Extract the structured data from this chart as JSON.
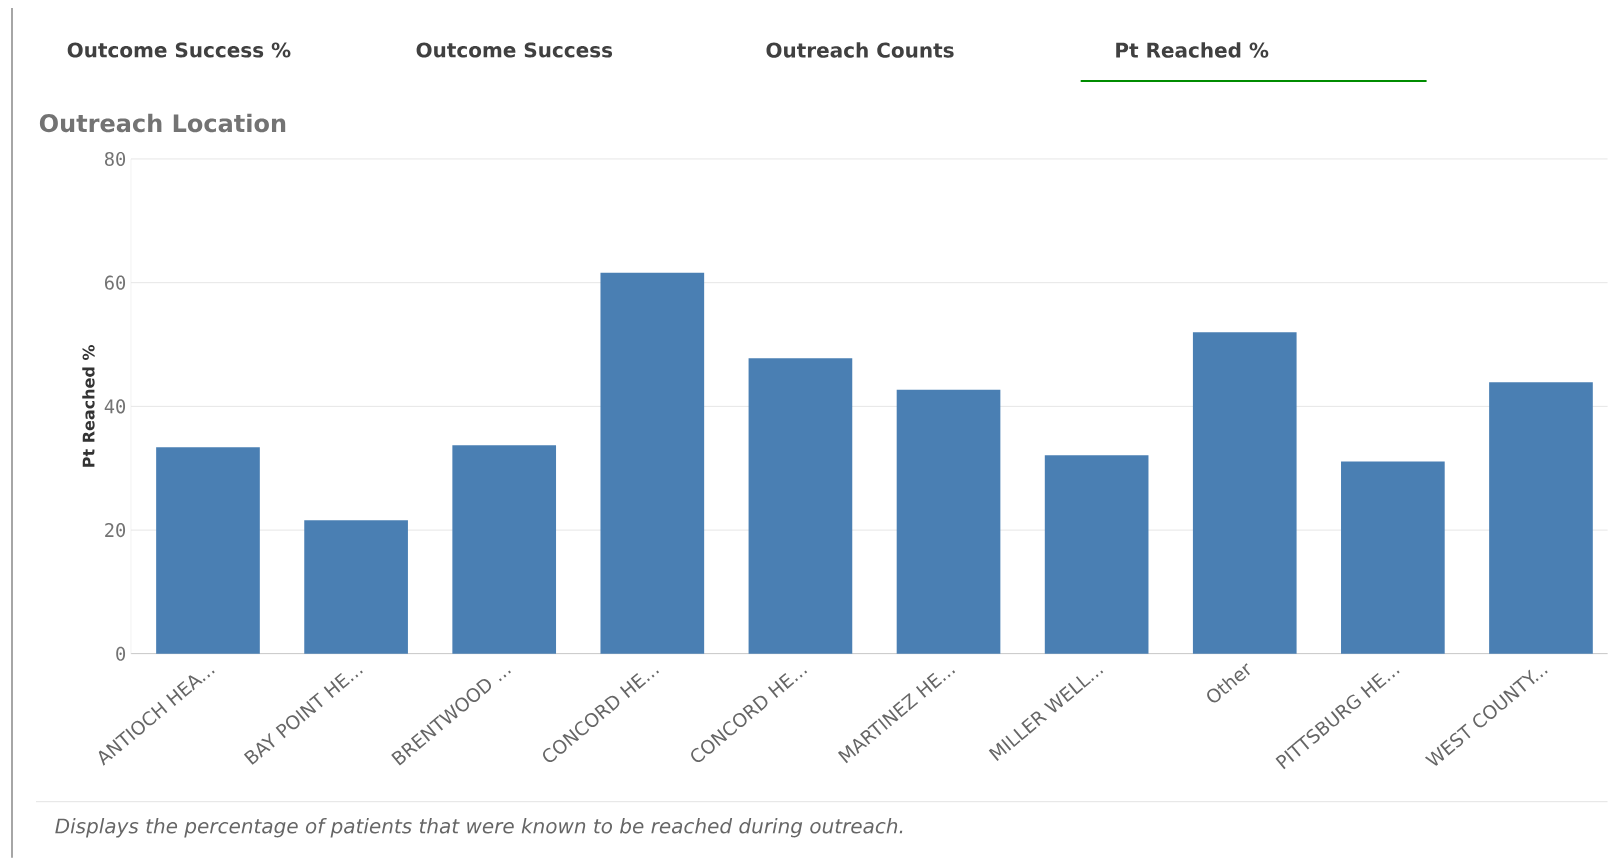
{
  "chart_data": {
    "type": "bar",
    "title": "Outreach Location",
    "ylabel": "Pt Reached %",
    "categories": [
      "ANTIOCH HEA...",
      "BAY POINT HE...",
      "BRENTWOOD ...",
      "CONCORD HE...",
      "CONCORD HE...",
      "MARTINEZ HE...",
      "MILLER WELL...",
      "Other",
      "PITTSBURG HE...",
      "WEST COUNTY..."
    ],
    "values": [
      33.4,
      21.6,
      33.7,
      61.6,
      47.8,
      42.7,
      32.1,
      52.0,
      31.1,
      43.9
    ],
    "color": "#4a7fb3",
    "ylim": [
      0,
      80
    ],
    "yticks": [
      0,
      20,
      40,
      60,
      80
    ],
    "grid": "y",
    "annotations": [
      "Outcome Success %",
      "Outcome Success",
      "Outreach Counts",
      "Pt Reached %",
      "Displays the percentage of patients that were known to be reached during outreach."
    ]
  }
}
